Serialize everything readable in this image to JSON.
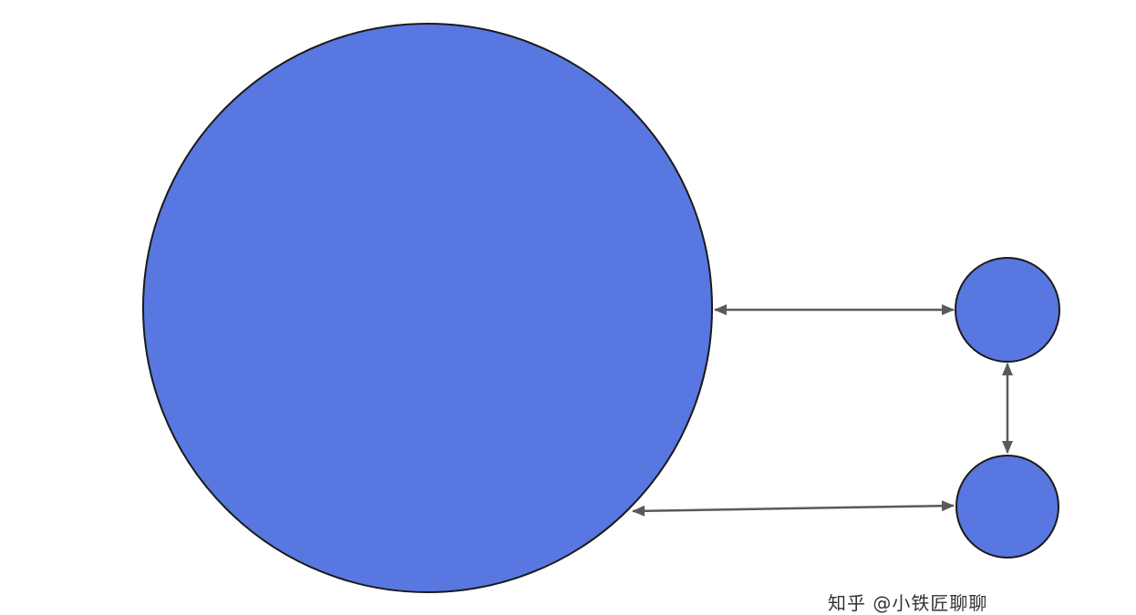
{
  "colors": {
    "background": "#ffffff",
    "node_fill": "#5877e0",
    "node_stroke": "#1a1a1a",
    "arrow": "#5a5a5a"
  },
  "nodes": [
    {
      "id": "large-node",
      "shape": "circle"
    },
    {
      "id": "small-node-top",
      "shape": "circle"
    },
    {
      "id": "small-node-bottom",
      "shape": "circle"
    }
  ],
  "edges": [
    {
      "from": "large-node",
      "to": "small-node-top",
      "direction": "bidirectional"
    },
    {
      "from": "large-node",
      "to": "small-node-bottom",
      "direction": "bidirectional"
    },
    {
      "from": "small-node-top",
      "to": "small-node-bottom",
      "direction": "bidirectional"
    }
  ],
  "watermark": {
    "text": "知乎 @小铁匠聊聊"
  }
}
